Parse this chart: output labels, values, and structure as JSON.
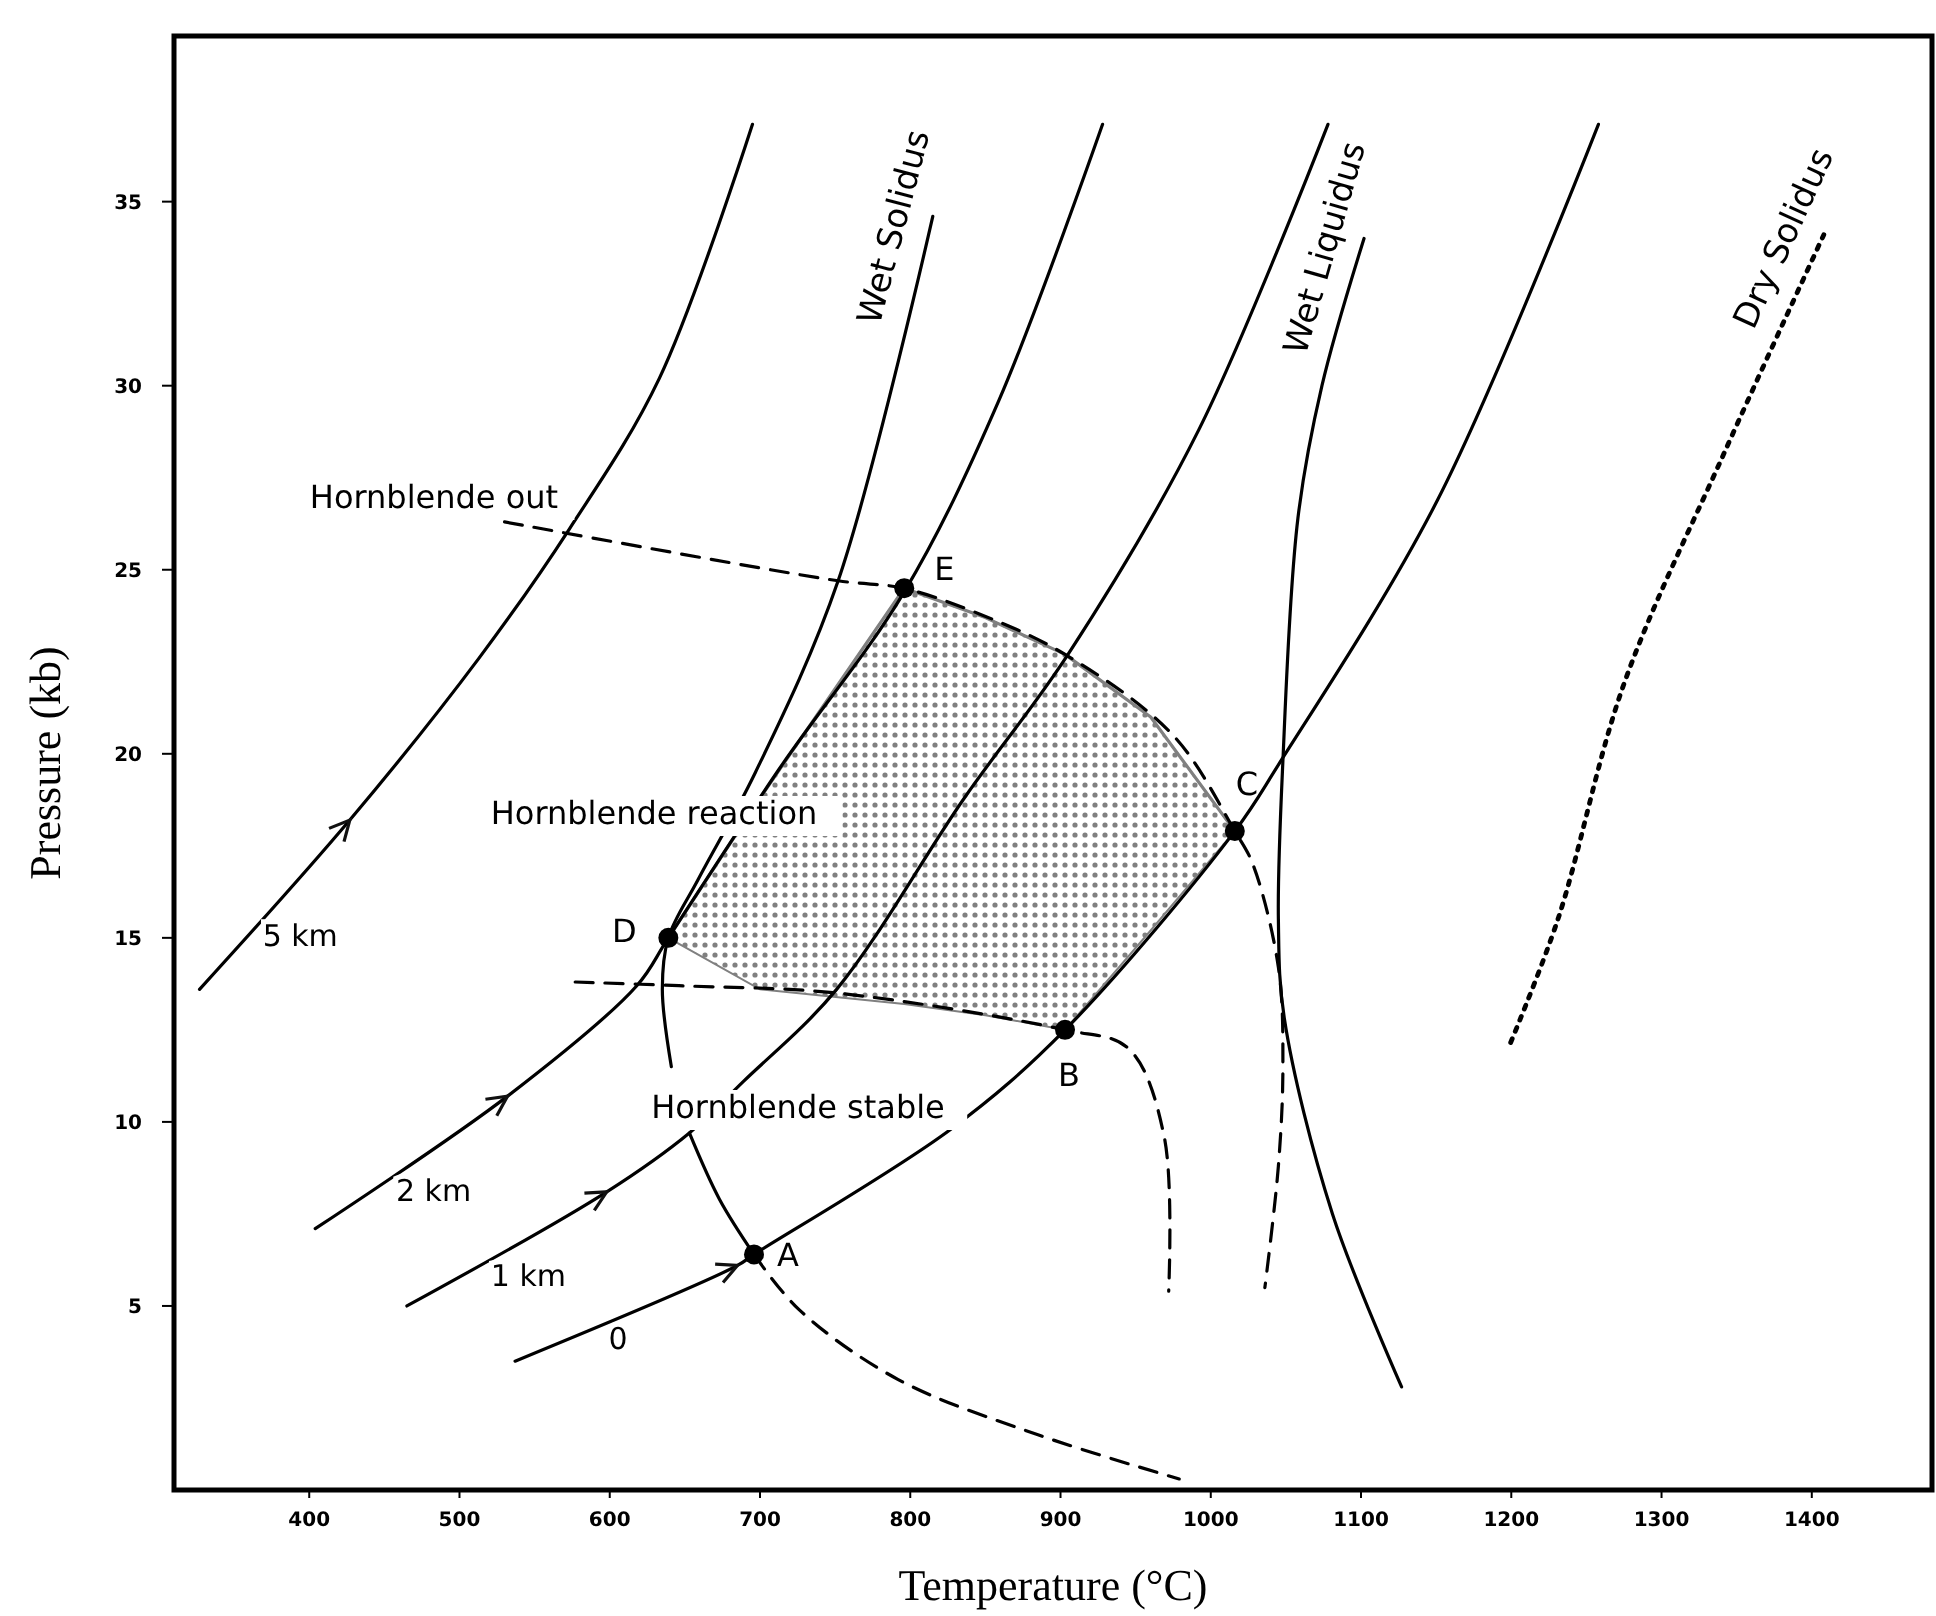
{
  "chart_data": {
    "type": "line",
    "xlabel": "Temperature (°C)",
    "ylabel": "Pressure (kb)",
    "xlim": [
      310,
      1480
    ],
    "xticks": [
      400,
      500,
      600,
      700,
      800,
      900,
      1000,
      1100,
      1200,
      1300,
      1400
    ],
    "ylim": [
      0,
      39.5
    ],
    "yticks": [
      5,
      10,
      15,
      20,
      25,
      30,
      35
    ],
    "annotations": [
      "Hornblende out",
      "Hornblende reaction",
      "Hornblende stable"
    ],
    "series": [
      {
        "color": "#808080",
        "x": [
          639,
          700,
          796,
          850,
          903,
          960,
          1016
        ],
        "values": [
          15.0,
          18.8,
          24.5,
          23.7,
          22.7,
          21.0,
          17.9
        ],
        "upper": [
          15.0,
          18.8,
          24.5,
          23.7,
          22.7,
          21.0,
          17.9
        ],
        "lower": [
          15.0,
          13.6,
          13.2,
          12.9,
          12.5,
          15.2,
          17.9
        ]
      },
      {
        "name": "5 km",
        "color": "#000000",
        "x": [
          327,
          427,
          513,
          573,
          633,
          695
        ],
        "values": [
          13.6,
          18.2,
          22.6,
          26.1,
          30.2,
          37.1
        ]
      },
      {
        "name": "2 km",
        "color": "#000000",
        "x": [
          404,
          532,
          618,
          639,
          713,
          796,
          859,
          928
        ],
        "values": [
          7.1,
          10.7,
          13.7,
          15.0,
          19.6,
          24.4,
          29.6,
          37.1
        ]
      },
      {
        "name": "1 km",
        "color": "#000000",
        "x": [
          465,
          598,
          653,
          689,
          751,
          836,
          905,
          992,
          1078
        ],
        "values": [
          5.0,
          8.1,
          9.7,
          11.1,
          13.6,
          18.8,
          22.7,
          28.8,
          37.1
        ]
      },
      {
        "name": "0",
        "color": "#000000",
        "x": [
          537,
          685,
          696,
          827,
          903,
          1016,
          1045,
          1151,
          1258
        ],
        "values": [
          3.5,
          6.1,
          6.4,
          9.8,
          12.5,
          17.9,
          19.7,
          26.9,
          37.1
        ]
      },
      {
        "name": "Wet Solidus",
        "color": "#000000",
        "x": [
          815,
          752,
          697,
          659,
          639,
          635,
          641
        ],
        "values": [
          34.6,
          24.7,
          19.5,
          16.6,
          15.0,
          13.6,
          11.5
        ]
      },
      {
        "name": "Wet Liquidus",
        "color": "#000000",
        "x": [
          1102,
          1074,
          1058,
          1048,
          1045,
          1049,
          1081,
          1127
        ],
        "values": [
          34.0,
          30.0,
          26.4,
          19.8,
          15.5,
          12.8,
          7.5,
          2.8
        ]
      },
      {
        "name": "Dry Solidus",
        "type": "line",
        "color": "#000000",
        "line_style": "dotted",
        "x": [
          1408,
          1342,
          1275,
          1231,
          1198
        ],
        "values": [
          34.1,
          28.2,
          21.9,
          15.5,
          12.0
        ]
      },
      {
        "type": "line",
        "color": "#000000",
        "x": [
          653,
          673,
          696
        ],
        "values": [
          9.7,
          7.9,
          6.4
        ]
      },
      {
        "type": "line",
        "color": "#000000",
        "line_style": "dashed",
        "x": [
          696,
          726,
          792,
          885,
          979
        ],
        "values": [
          6.4,
          4.9,
          3.0,
          1.5,
          0.3
        ]
      },
      {
        "type": "line",
        "color": "#000000",
        "line_style": "dashed",
        "x": [
          530,
          752,
          795,
          846,
          903,
          975,
          1016,
          1028,
          1045,
          1048,
          1045,
          1036
        ],
        "values": [
          26.3,
          24.7,
          24.5,
          23.8,
          22.7,
          20.5,
          17.9,
          17.0,
          14.2,
          11.5,
          8.8,
          5.5
        ]
      },
      {
        "type": "line",
        "color": "#000000",
        "line_style": "dashed",
        "x": [
          577,
          646,
          751,
          903,
          945,
          969,
          972
        ],
        "values": [
          13.8,
          13.7,
          13.5,
          12.5,
          12.0,
          9.6,
          5.4
        ]
      },
      {
        "type": "scatter",
        "color": "#000000",
        "marker": "circle",
        "x": [
          696,
          903,
          1016,
          639,
          796
        ],
        "values": [
          6.4,
          12.5,
          17.9,
          15.0,
          24.5
        ],
        "value_labels": [
          "A",
          "B",
          "C",
          "D",
          "E"
        ]
      }
    ]
  }
}
